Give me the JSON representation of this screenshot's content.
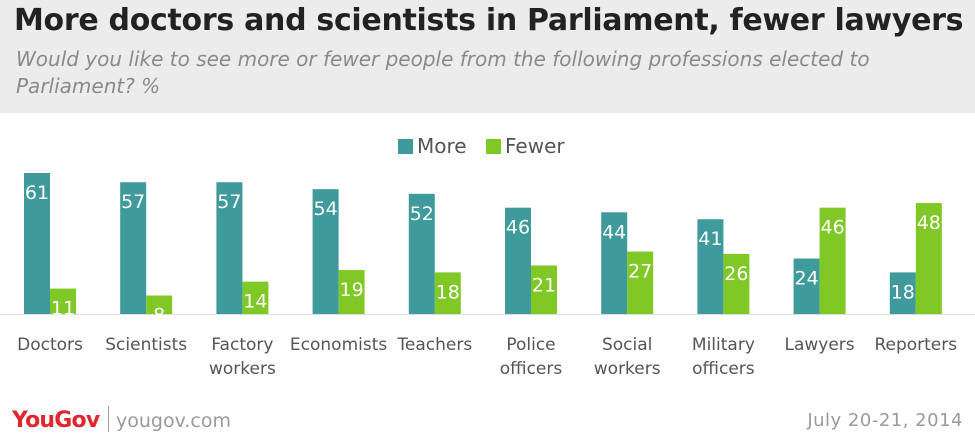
{
  "header": {
    "title": "More doctors and scientists in Parliament, fewer lawyers",
    "subtitle": "Would you like to see more or fewer people from the following professions elected to Parliament? %"
  },
  "chart_data": {
    "type": "bar",
    "categories": [
      [
        "Doctors"
      ],
      [
        "Scientists"
      ],
      [
        "Factory",
        "workers"
      ],
      [
        "Economists"
      ],
      [
        "Teachers"
      ],
      [
        "Police",
        "officers"
      ],
      [
        "Social",
        "workers"
      ],
      [
        "Military",
        "officers"
      ],
      [
        "Lawyers"
      ],
      [
        "Reporters"
      ]
    ],
    "series": [
      {
        "name": "More",
        "color": "#3e9a9b",
        "values": [
          61,
          57,
          57,
          54,
          52,
          46,
          44,
          41,
          24,
          18
        ]
      },
      {
        "name": "Fewer",
        "color": "#7fc825",
        "values": [
          11,
          8,
          14,
          19,
          18,
          21,
          27,
          26,
          46,
          48
        ]
      }
    ],
    "title": "",
    "xlabel": "",
    "ylabel": "",
    "ylim": [
      0,
      62
    ],
    "legend_position": "top-center",
    "grid": false,
    "data_labels": true
  },
  "footer": {
    "logo": "YouGov",
    "site": "yougov.com",
    "date": "July 20-21, 2014"
  }
}
